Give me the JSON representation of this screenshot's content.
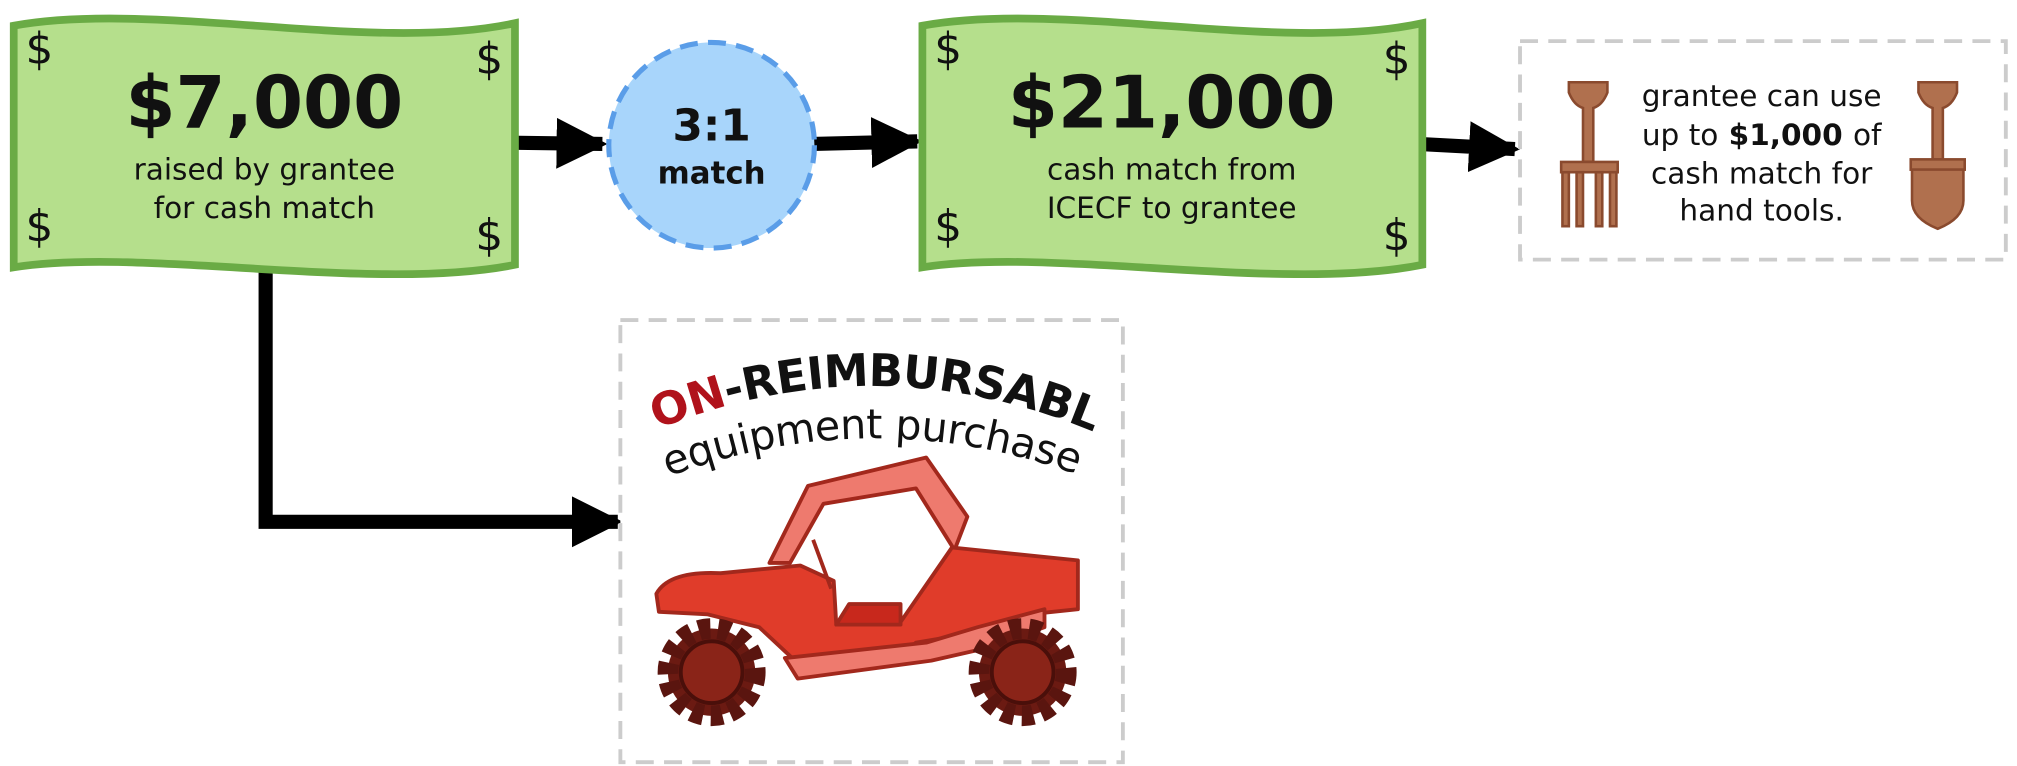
{
  "bill_symbol": "$",
  "raised": {
    "amount": "$7,000",
    "caption": [
      "raised by grantee",
      "for cash match"
    ]
  },
  "ratio": {
    "value": "3:1",
    "label": "match"
  },
  "match": {
    "amount": "$21,000",
    "caption": [
      "cash match from",
      "ICECF to grantee"
    ]
  },
  "note": {
    "lines": [
      "grantee can use",
      [
        "up to",
        "$1,000",
        "of"
      ],
      "cash match for",
      "hand tools."
    ]
  },
  "equipment": {
    "heading": [
      "NON",
      "-REIMBURSABLE"
    ],
    "subheading": "equipment purchase"
  }
}
